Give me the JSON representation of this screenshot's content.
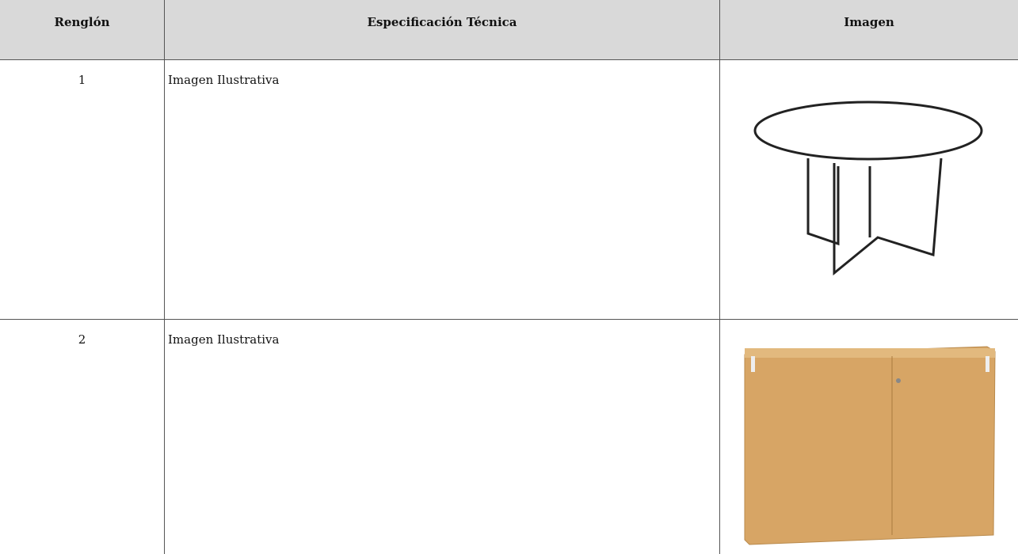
{
  "table": {
    "headers": [
      "Renglón",
      "Especificación Técnica",
      "Imagen"
    ],
    "rows": [
      [
        "1",
        "Imagen Ilustrativa"
      ],
      [
        "2",
        "Imagen Ilustrativa"
      ]
    ]
  }
}
